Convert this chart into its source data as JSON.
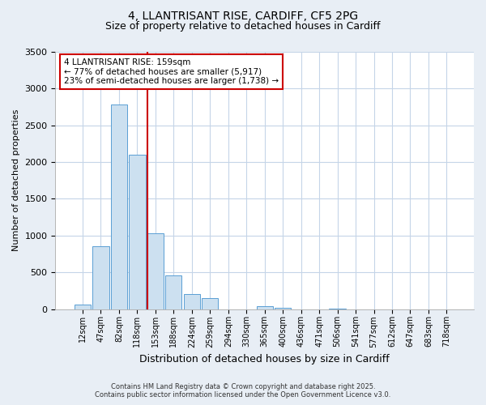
{
  "title_line1": "4, LLANTRISANT RISE, CARDIFF, CF5 2PG",
  "title_line2": "Size of property relative to detached houses in Cardiff",
  "xlabel": "Distribution of detached houses by size in Cardiff",
  "ylabel": "Number of detached properties",
  "categories": [
    "12sqm",
    "47sqm",
    "82sqm",
    "118sqm",
    "153sqm",
    "188sqm",
    "224sqm",
    "259sqm",
    "294sqm",
    "330sqm",
    "365sqm",
    "400sqm",
    "436sqm",
    "471sqm",
    "506sqm",
    "541sqm",
    "577sqm",
    "612sqm",
    "647sqm",
    "683sqm",
    "718sqm"
  ],
  "values": [
    60,
    850,
    2780,
    2100,
    1030,
    460,
    200,
    150,
    0,
    0,
    40,
    20,
    0,
    0,
    5,
    0,
    0,
    0,
    0,
    0,
    0
  ],
  "bar_color": "#cce0f0",
  "bar_edge_color": "#5a9fd4",
  "vline_color": "#cc0000",
  "annotation_text": "4 LLANTRISANT RISE: 159sqm\n← 77% of detached houses are smaller (5,917)\n23% of semi-detached houses are larger (1,738) →",
  "annotation_box_color": "#ffffff",
  "annotation_box_edge": "#cc0000",
  "ylim": [
    0,
    3500
  ],
  "yticks": [
    0,
    500,
    1000,
    1500,
    2000,
    2500,
    3000,
    3500
  ],
  "footer_line1": "Contains HM Land Registry data © Crown copyright and database right 2025.",
  "footer_line2": "Contains public sector information licensed under the Open Government Licence v3.0.",
  "bg_color": "#e8eef5",
  "plot_bg_color": "#ffffff",
  "grid_color": "#c5d5e8"
}
